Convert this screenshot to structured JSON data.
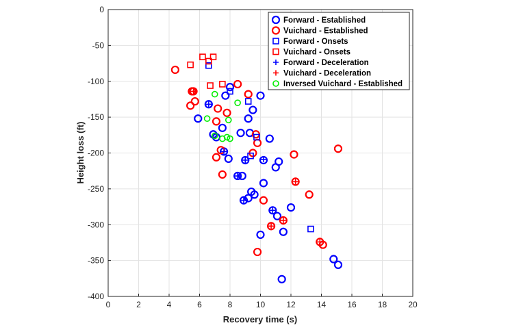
{
  "chart_data": {
    "type": "scatter",
    "title": "",
    "xlabel": "Recovery time (s)",
    "ylabel": "Height loss (ft)",
    "xlim": [
      0,
      20
    ],
    "ylim": [
      -400,
      0
    ],
    "xticks": [
      0,
      2,
      4,
      6,
      8,
      10,
      12,
      14,
      16,
      18,
      20
    ],
    "yticks": [
      0,
      -50,
      -100,
      -150,
      -200,
      -250,
      -300,
      -350,
      -400
    ],
    "grid": true,
    "legend_position": "top-right",
    "series": [
      {
        "name": "Forward - Established",
        "marker": "circle",
        "color": "#0000ff",
        "points": [
          [
            8.0,
            -108
          ],
          [
            7.7,
            -120
          ],
          [
            10.0,
            -120
          ],
          [
            9.5,
            -140
          ],
          [
            9.2,
            -152
          ],
          [
            5.9,
            -152
          ],
          [
            7.5,
            -165
          ],
          [
            6.9,
            -174
          ],
          [
            7.1,
            -178
          ],
          [
            8.7,
            -172
          ],
          [
            9.3,
            -172
          ],
          [
            10.6,
            -180
          ],
          [
            7.6,
            -198
          ],
          [
            7.9,
            -208
          ],
          [
            9.0,
            -210
          ],
          [
            10.2,
            -210
          ],
          [
            11.2,
            -212
          ],
          [
            11.0,
            -220
          ],
          [
            8.5,
            -232
          ],
          [
            8.8,
            -232
          ],
          [
            10.2,
            -242
          ],
          [
            9.4,
            -254
          ],
          [
            9.6,
            -258
          ],
          [
            9.2,
            -263
          ],
          [
            8.9,
            -266
          ],
          [
            12.0,
            -276
          ],
          [
            10.8,
            -280
          ],
          [
            11.1,
            -288
          ],
          [
            10.0,
            -314
          ],
          [
            11.5,
            -310
          ],
          [
            14.8,
            -348
          ],
          [
            15.1,
            -356
          ],
          [
            11.4,
            -376
          ],
          [
            6.6,
            -132
          ]
        ]
      },
      {
        "name": "Vuichard - Established",
        "marker": "circle",
        "color": "#ff0000",
        "points": [
          [
            4.4,
            -84
          ],
          [
            8.5,
            -104
          ],
          [
            9.2,
            -118
          ],
          [
            5.6,
            -114
          ],
          [
            5.5,
            -114
          ],
          [
            5.7,
            -128
          ],
          [
            5.4,
            -134
          ],
          [
            7.2,
            -138
          ],
          [
            7.8,
            -144
          ],
          [
            7.1,
            -156
          ],
          [
            9.7,
            -174
          ],
          [
            9.8,
            -186
          ],
          [
            7.4,
            -196
          ],
          [
            7.1,
            -206
          ],
          [
            9.5,
            -200
          ],
          [
            12.2,
            -202
          ],
          [
            15.1,
            -194
          ],
          [
            7.5,
            -230
          ],
          [
            12.3,
            -240
          ],
          [
            10.2,
            -266
          ],
          [
            13.2,
            -258
          ],
          [
            11.5,
            -294
          ],
          [
            10.7,
            -302
          ],
          [
            13.9,
            -324
          ],
          [
            14.1,
            -328
          ],
          [
            9.8,
            -338
          ]
        ]
      },
      {
        "name": "Forward - Onsets",
        "marker": "square",
        "color": "#0000ff",
        "points": [
          [
            6.6,
            -78
          ],
          [
            8.0,
            -114
          ],
          [
            9.2,
            -128
          ],
          [
            9.75,
            -178
          ],
          [
            9.35,
            -204
          ],
          [
            13.3,
            -306
          ]
        ]
      },
      {
        "name": "Vuichard - Onsets",
        "marker": "square",
        "color": "#ff0000",
        "points": [
          [
            5.4,
            -77
          ],
          [
            6.2,
            -66
          ],
          [
            6.6,
            -72
          ],
          [
            6.9,
            -66
          ],
          [
            6.7,
            -106
          ],
          [
            7.5,
            -104
          ]
        ]
      },
      {
        "name": "Forward - Deceleration",
        "marker": "plus",
        "color": "#0000ff",
        "points": [
          [
            6.6,
            -132
          ],
          [
            7.6,
            -198
          ],
          [
            9.0,
            -210
          ],
          [
            10.2,
            -209
          ],
          [
            8.5,
            -232
          ],
          [
            8.9,
            -266
          ],
          [
            10.8,
            -280
          ]
        ]
      },
      {
        "name": "Vuichard - Deceleration",
        "marker": "plus",
        "color": "#ff0000",
        "points": [
          [
            12.3,
            -240
          ],
          [
            11.5,
            -294
          ],
          [
            10.7,
            -302
          ],
          [
            13.9,
            -324
          ],
          [
            5.6,
            -114
          ]
        ]
      },
      {
        "name": "Inversed Vuichard - Established",
        "marker": "circle-small",
        "color": "#00ee00",
        "points": [
          [
            7.0,
            -118
          ],
          [
            8.5,
            -130
          ],
          [
            6.5,
            -152
          ],
          [
            7.9,
            -154
          ],
          [
            7.0,
            -176
          ],
          [
            7.5,
            -180
          ],
          [
            7.8,
            -178
          ],
          [
            8.0,
            -180
          ]
        ]
      }
    ]
  }
}
